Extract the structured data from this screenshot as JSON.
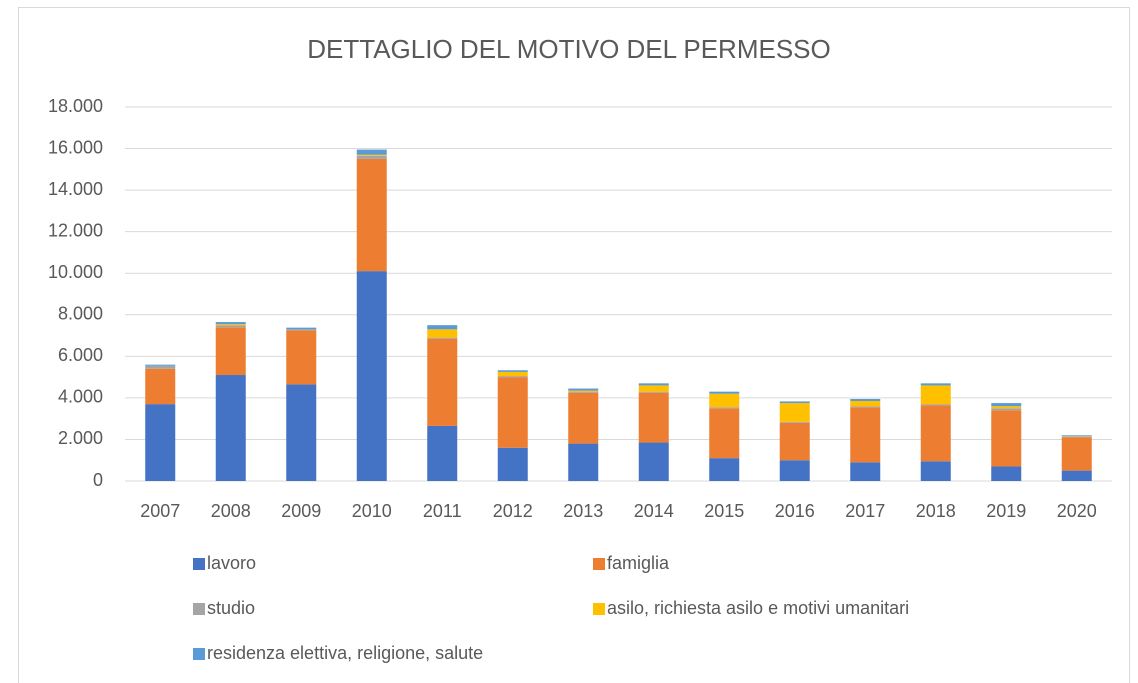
{
  "chart_data": {
    "type": "stacked_bar",
    "title": "DETTAGLIO DEL MOTIVO DEL PERMESSO",
    "categories": [
      "2007",
      "2008",
      "2009",
      "2010",
      "2011",
      "2012",
      "2013",
      "2014",
      "2015",
      "2016",
      "2017",
      "2018",
      "2019",
      "2020"
    ],
    "series": [
      {
        "name": "lavoro",
        "color": "#4472c4",
        "values": [
          3700,
          5100,
          4650,
          10100,
          2650,
          1600,
          1800,
          1850,
          1100,
          1000,
          900,
          950,
          700,
          500
        ]
      },
      {
        "name": "famiglia",
        "color": "#ed7d31",
        "values": [
          1700,
          2300,
          2600,
          5400,
          4200,
          3400,
          2450,
          2400,
          2400,
          1800,
          2650,
          2700,
          2700,
          1600
        ]
      },
      {
        "name": "studio",
        "color": "#a5a5a5",
        "values": [
          150,
          100,
          50,
          150,
          50,
          50,
          50,
          50,
          50,
          50,
          50,
          50,
          100,
          30
        ]
      },
      {
        "name": "asilo, richiesta asilo e motivi umanitari",
        "color": "#ffc000",
        "values": [
          0,
          50,
          0,
          50,
          400,
          200,
          50,
          300,
          650,
          900,
          250,
          900,
          100,
          20
        ]
      },
      {
        "name": "residenza elettiva, religione, salute",
        "color": "#5b9bd5",
        "values": [
          50,
          100,
          80,
          250,
          200,
          80,
          100,
          100,
          100,
          80,
          100,
          100,
          150,
          50
        ]
      }
    ],
    "ylim": [
      0,
      18000
    ],
    "yticks": [
      0,
      {
        "value": 2000,
        "label": "2.000"
      },
      {
        "value": 4000,
        "label": "4.000"
      },
      {
        "value": 6000,
        "label": "6.000"
      },
      {
        "value": 8000,
        "label": "8.000"
      },
      {
        "value": 10000,
        "label": "10.000"
      },
      {
        "value": 12000,
        "label": "12.000"
      },
      {
        "value": 14000,
        "label": "14.000"
      },
      {
        "value": 16000,
        "label": "16.000"
      },
      {
        "value": 18000,
        "label": "18.000"
      }
    ],
    "grid": true,
    "legend": "bottom"
  }
}
